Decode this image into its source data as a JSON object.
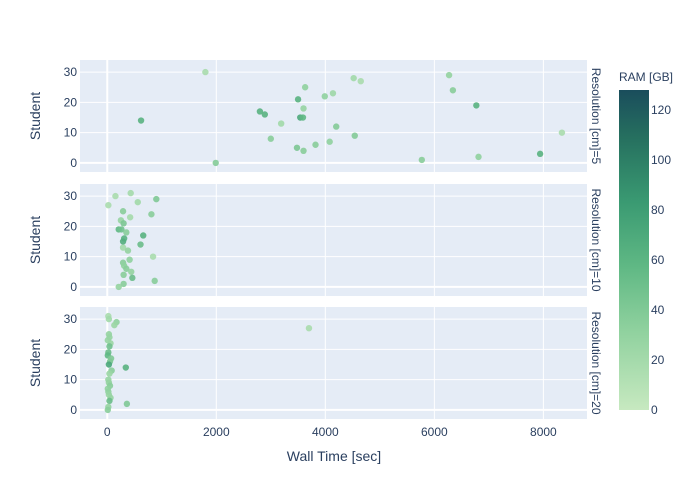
{
  "chart_data": {
    "type": "scatter",
    "xlabel": "Wall Time [sec]",
    "ylabel": "Student",
    "xlim": [
      -500,
      8800
    ],
    "ylim": [
      -3,
      34
    ],
    "x_ticks": [
      0,
      2000,
      4000,
      6000,
      8000
    ],
    "x_tick_labels": [
      "0",
      "2000",
      "4000",
      "6000",
      "8000"
    ],
    "y_ticks": [
      0,
      10,
      20,
      30
    ],
    "y_tick_labels": [
      "0",
      "10",
      "20",
      "30"
    ],
    "grid": true,
    "color_axis": {
      "title": "RAM [GB]",
      "range": [
        0,
        128
      ],
      "ticks": [
        0,
        20,
        40,
        60,
        80,
        100,
        120
      ],
      "tick_labels": [
        "0",
        "20",
        "40",
        "60",
        "80",
        "100",
        "120"
      ],
      "colors": [
        "#c7e9c0",
        "#1a4d5c"
      ]
    },
    "facets": [
      {
        "label": "Resolution [cm]=5",
        "points": [
          {
            "x": 1800,
            "y": 30,
            "ram": 18
          },
          {
            "x": 6270,
            "y": 29,
            "ram": 30
          },
          {
            "x": 4520,
            "y": 28,
            "ram": 22
          },
          {
            "x": 4650,
            "y": 27,
            "ram": 18
          },
          {
            "x": 3630,
            "y": 25,
            "ram": 32
          },
          {
            "x": 6340,
            "y": 24,
            "ram": 36
          },
          {
            "x": 4140,
            "y": 23,
            "ram": 24
          },
          {
            "x": 3990,
            "y": 22,
            "ram": 32
          },
          {
            "x": 3500,
            "y": 21,
            "ram": 62
          },
          {
            "x": 6770,
            "y": 19,
            "ram": 62
          },
          {
            "x": 3600,
            "y": 18,
            "ram": 28
          },
          {
            "x": 2800,
            "y": 17,
            "ram": 62
          },
          {
            "x": 2890,
            "y": 16,
            "ram": 62
          },
          {
            "x": 3540,
            "y": 15,
            "ram": 70
          },
          {
            "x": 3590,
            "y": 15,
            "ram": 58
          },
          {
            "x": 620,
            "y": 14,
            "ram": 62
          },
          {
            "x": 3190,
            "y": 13,
            "ram": 22
          },
          {
            "x": 4200,
            "y": 12,
            "ram": 38
          },
          {
            "x": 8340,
            "y": 10,
            "ram": 18
          },
          {
            "x": 4540,
            "y": 9,
            "ram": 38
          },
          {
            "x": 3000,
            "y": 8,
            "ram": 36
          },
          {
            "x": 4080,
            "y": 7,
            "ram": 32
          },
          {
            "x": 3820,
            "y": 6,
            "ram": 36
          },
          {
            "x": 3480,
            "y": 5,
            "ram": 42
          },
          {
            "x": 3600,
            "y": 4,
            "ram": 36
          },
          {
            "x": 7940,
            "y": 3,
            "ram": 62
          },
          {
            "x": 6810,
            "y": 2,
            "ram": 32
          },
          {
            "x": 5770,
            "y": 1,
            "ram": 36
          },
          {
            "x": 1990,
            "y": 0,
            "ram": 38
          }
        ]
      },
      {
        "label": "Resolution [cm]=10",
        "points": [
          {
            "x": 430,
            "y": 31,
            "ram": 20
          },
          {
            "x": 150,
            "y": 30,
            "ram": 18
          },
          {
            "x": 900,
            "y": 29,
            "ram": 40
          },
          {
            "x": 560,
            "y": 28,
            "ram": 22
          },
          {
            "x": 20,
            "y": 27,
            "ram": 18
          },
          {
            "x": 290,
            "y": 25,
            "ram": 36
          },
          {
            "x": 810,
            "y": 24,
            "ram": 36
          },
          {
            "x": 420,
            "y": 23,
            "ram": 20
          },
          {
            "x": 250,
            "y": 22,
            "ram": 28
          },
          {
            "x": 300,
            "y": 21,
            "ram": 42
          },
          {
            "x": 210,
            "y": 19,
            "ram": 58
          },
          {
            "x": 260,
            "y": 19,
            "ram": 48
          },
          {
            "x": 350,
            "y": 18,
            "ram": 36
          },
          {
            "x": 660,
            "y": 17,
            "ram": 62
          },
          {
            "x": 310,
            "y": 16,
            "ram": 62
          },
          {
            "x": 290,
            "y": 15,
            "ram": 66
          },
          {
            "x": 610,
            "y": 14,
            "ram": 52
          },
          {
            "x": 290,
            "y": 13,
            "ram": 22
          },
          {
            "x": 380,
            "y": 12,
            "ram": 30
          },
          {
            "x": 840,
            "y": 10,
            "ram": 18
          },
          {
            "x": 410,
            "y": 9,
            "ram": 32
          },
          {
            "x": 290,
            "y": 8,
            "ram": 36
          },
          {
            "x": 310,
            "y": 7,
            "ram": 32
          },
          {
            "x": 350,
            "y": 6,
            "ram": 36
          },
          {
            "x": 440,
            "y": 5,
            "ram": 30
          },
          {
            "x": 300,
            "y": 4,
            "ram": 36
          },
          {
            "x": 460,
            "y": 3,
            "ram": 52
          },
          {
            "x": 870,
            "y": 2,
            "ram": 36
          },
          {
            "x": 300,
            "y": 1,
            "ram": 36
          },
          {
            "x": 210,
            "y": 0,
            "ram": 30
          }
        ]
      },
      {
        "label": "Resolution [cm]=20",
        "points": [
          {
            "x": 20,
            "y": 31,
            "ram": 18
          },
          {
            "x": 30,
            "y": 30,
            "ram": 22
          },
          {
            "x": 170,
            "y": 29,
            "ram": 32
          },
          {
            "x": 130,
            "y": 28,
            "ram": 26
          },
          {
            "x": 3700,
            "y": 27,
            "ram": 18
          },
          {
            "x": 30,
            "y": 25,
            "ram": 30
          },
          {
            "x": 40,
            "y": 24,
            "ram": 28
          },
          {
            "x": 10,
            "y": 23,
            "ram": 28
          },
          {
            "x": 60,
            "y": 22,
            "ram": 26
          },
          {
            "x": 40,
            "y": 21,
            "ram": 48
          },
          {
            "x": 20,
            "y": 19,
            "ram": 52
          },
          {
            "x": 10,
            "y": 18,
            "ram": 58
          },
          {
            "x": 70,
            "y": 17,
            "ram": 40
          },
          {
            "x": 50,
            "y": 16,
            "ram": 40
          },
          {
            "x": 30,
            "y": 15,
            "ram": 72
          },
          {
            "x": 340,
            "y": 14,
            "ram": 62
          },
          {
            "x": 80,
            "y": 13,
            "ram": 36
          },
          {
            "x": 40,
            "y": 12,
            "ram": 26
          },
          {
            "x": 20,
            "y": 10,
            "ram": 28
          },
          {
            "x": 30,
            "y": 9,
            "ram": 30
          },
          {
            "x": 50,
            "y": 8,
            "ram": 36
          },
          {
            "x": 10,
            "y": 7,
            "ram": 32
          },
          {
            "x": 20,
            "y": 6,
            "ram": 32
          },
          {
            "x": 30,
            "y": 5,
            "ram": 28
          },
          {
            "x": 60,
            "y": 4,
            "ram": 28
          },
          {
            "x": 40,
            "y": 3,
            "ram": 52
          },
          {
            "x": 360,
            "y": 2,
            "ram": 40
          },
          {
            "x": 20,
            "y": 1,
            "ram": 30
          },
          {
            "x": 10,
            "y": 0,
            "ram": 36
          }
        ]
      }
    ]
  }
}
